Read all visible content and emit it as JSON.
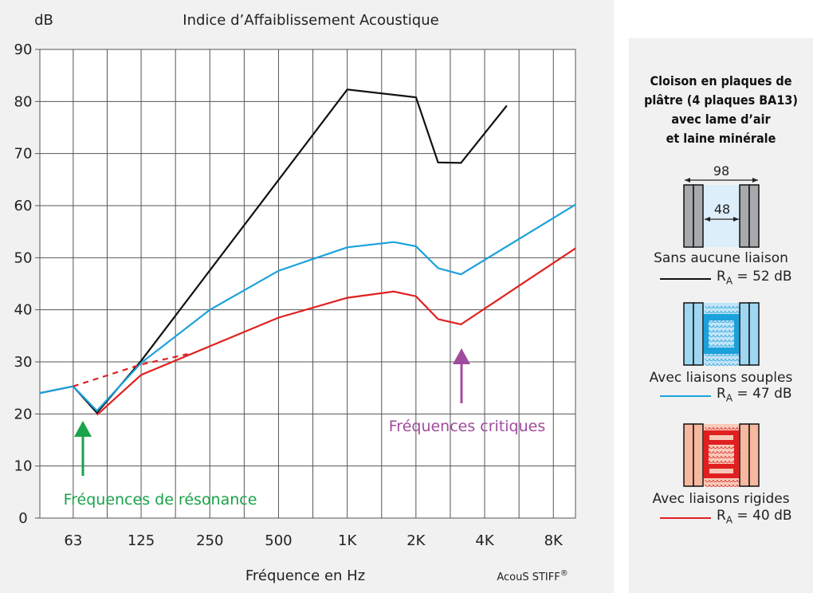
{
  "header": {
    "y_unit": "dB",
    "title": "Indice d’Affaiblissement Acoustique"
  },
  "xlabel": "Fréquence en Hz",
  "brand": {
    "text": "AcouS STIFF",
    "mark": "®"
  },
  "annotations": {
    "resonance": {
      "text": "Fréquences de résonance",
      "color": "#1aa34a"
    },
    "critical": {
      "text": "Fréquences critiques",
      "color": "#a04c9c"
    }
  },
  "panel": {
    "title_lines": [
      "Cloison en plaques de",
      "plâtre (4 plaques BA13)",
      "avec lame d’air",
      "et laine minérale"
    ],
    "dim_outer": "98",
    "dim_inner": "48",
    "legend": [
      {
        "label": "Sans aucune liaison",
        "ra_symbol": "R",
        "ra_sub": "A",
        "ra_value": " = 52 dB",
        "color": "#111111"
      },
      {
        "label": "Avec liaisons souples",
        "ra_symbol": "R",
        "ra_sub": "A",
        "ra_value": " = 47 dB",
        "color": "#1ba1dc"
      },
      {
        "label": "Avec liaisons rigides",
        "ra_symbol": "R",
        "ra_sub": "A",
        "ra_value": " = 40 dB",
        "color": "#e02020"
      }
    ]
  },
  "chart_data": {
    "type": "line",
    "title": "Indice d’Affaiblissement Acoustique",
    "xlabel": "Fréquence en Hz",
    "ylabel": "dB",
    "x_scale": "log2",
    "xlim": [
      45,
      10000
    ],
    "ylim": [
      0,
      90
    ],
    "grid": true,
    "x_ticks": [
      {
        "value": 63,
        "label": "63"
      },
      {
        "value": 125,
        "label": "125"
      },
      {
        "value": 250,
        "label": "250"
      },
      {
        "value": 500,
        "label": "500"
      },
      {
        "value": 1000,
        "label": "1K"
      },
      {
        "value": 2000,
        "label": "2K"
      },
      {
        "value": 4000,
        "label": "4K"
      },
      {
        "value": 8000,
        "label": "8K"
      }
    ],
    "y_ticks": [
      0,
      10,
      20,
      30,
      40,
      50,
      60,
      70,
      80,
      90
    ],
    "series": [
      {
        "name": "Sans aucune liaison",
        "color": "#111111",
        "points": [
          [
            45,
            24
          ],
          [
            63,
            25.3
          ],
          [
            80,
            20.2
          ],
          [
            125,
            30.2
          ],
          [
            1000,
            82.3
          ],
          [
            2000,
            80.8
          ],
          [
            2500,
            68.3
          ],
          [
            3150,
            68.2
          ],
          [
            5000,
            79.2
          ]
        ]
      },
      {
        "name": "Avec liaisons souples",
        "color": "#1ba1dc",
        "points": [
          [
            45,
            24
          ],
          [
            63,
            25.3
          ],
          [
            80,
            20.6
          ],
          [
            125,
            29.8
          ],
          [
            250,
            40
          ],
          [
            500,
            47.5
          ],
          [
            1000,
            52
          ],
          [
            1600,
            53
          ],
          [
            2000,
            52.2
          ],
          [
            2500,
            48
          ],
          [
            3150,
            46.8
          ],
          [
            10000,
            60.2
          ]
        ]
      },
      {
        "name": "Avec liaisons rigides",
        "color": "#e02020",
        "points": [
          [
            80,
            19.8
          ],
          [
            125,
            27.5
          ],
          [
            250,
            33
          ],
          [
            500,
            38.5
          ],
          [
            1000,
            42.3
          ],
          [
            1600,
            43.5
          ],
          [
            2000,
            42.6
          ],
          [
            2500,
            38.2
          ],
          [
            3150,
            37.2
          ],
          [
            10000,
            51.8
          ]
        ]
      },
      {
        "name": "",
        "color": "#e02020",
        "dashed": true,
        "points": [
          [
            63,
            25.3
          ],
          [
            125,
            29.5
          ],
          [
            200,
            31.5
          ]
        ]
      }
    ]
  }
}
